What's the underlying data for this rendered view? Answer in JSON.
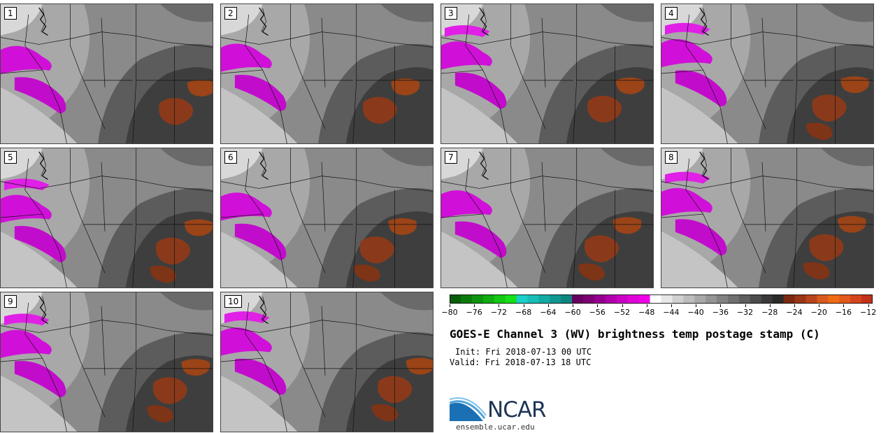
{
  "title": "GOES-E Channel 3 (WV) brightness temp postage stamp (C)",
  "init": "Init: Fri 2018-07-13 00 UTC",
  "valid": "Valid: Fri 2018-07-13 18 UTC",
  "logo": {
    "text": "NCAR",
    "url": "ensemble.ucar.edu"
  },
  "panels": [
    "1",
    "2",
    "3",
    "4",
    "5",
    "6",
    "7",
    "8",
    "9",
    "10"
  ],
  "colorbar": {
    "ticks": [
      "−80",
      "−76",
      "−72",
      "−68",
      "−64",
      "−60",
      "−56",
      "−52",
      "−48",
      "−44",
      "−40",
      "−36",
      "−32",
      "−28",
      "−24",
      "−20",
      "−16",
      "−12"
    ],
    "colors": [
      "#0a5e0a",
      "#0b7a0b",
      "#0e930e",
      "#11ac11",
      "#14c814",
      "#16e016",
      "#1ad0c8",
      "#17bdb6",
      "#14aaa4",
      "#119792",
      "#0e8580",
      "#66005e",
      "#7d0075",
      "#960090",
      "#b000aa",
      "#ca00c4",
      "#e000d8",
      "#f000e8",
      "#ffffff",
      "#e8e8e8",
      "#d0d0d0",
      "#bdbdbd",
      "#a8a8a8",
      "#959595",
      "#828282",
      "#707070",
      "#5e5e5e",
      "#4c4c4c",
      "#3a3a3a",
      "#2a2a2a",
      "#7a2a10",
      "#983616",
      "#b8441c",
      "#d95a1e",
      "#f06b14",
      "#e4581a",
      "#d4441a",
      "#c0321a"
    ]
  }
}
